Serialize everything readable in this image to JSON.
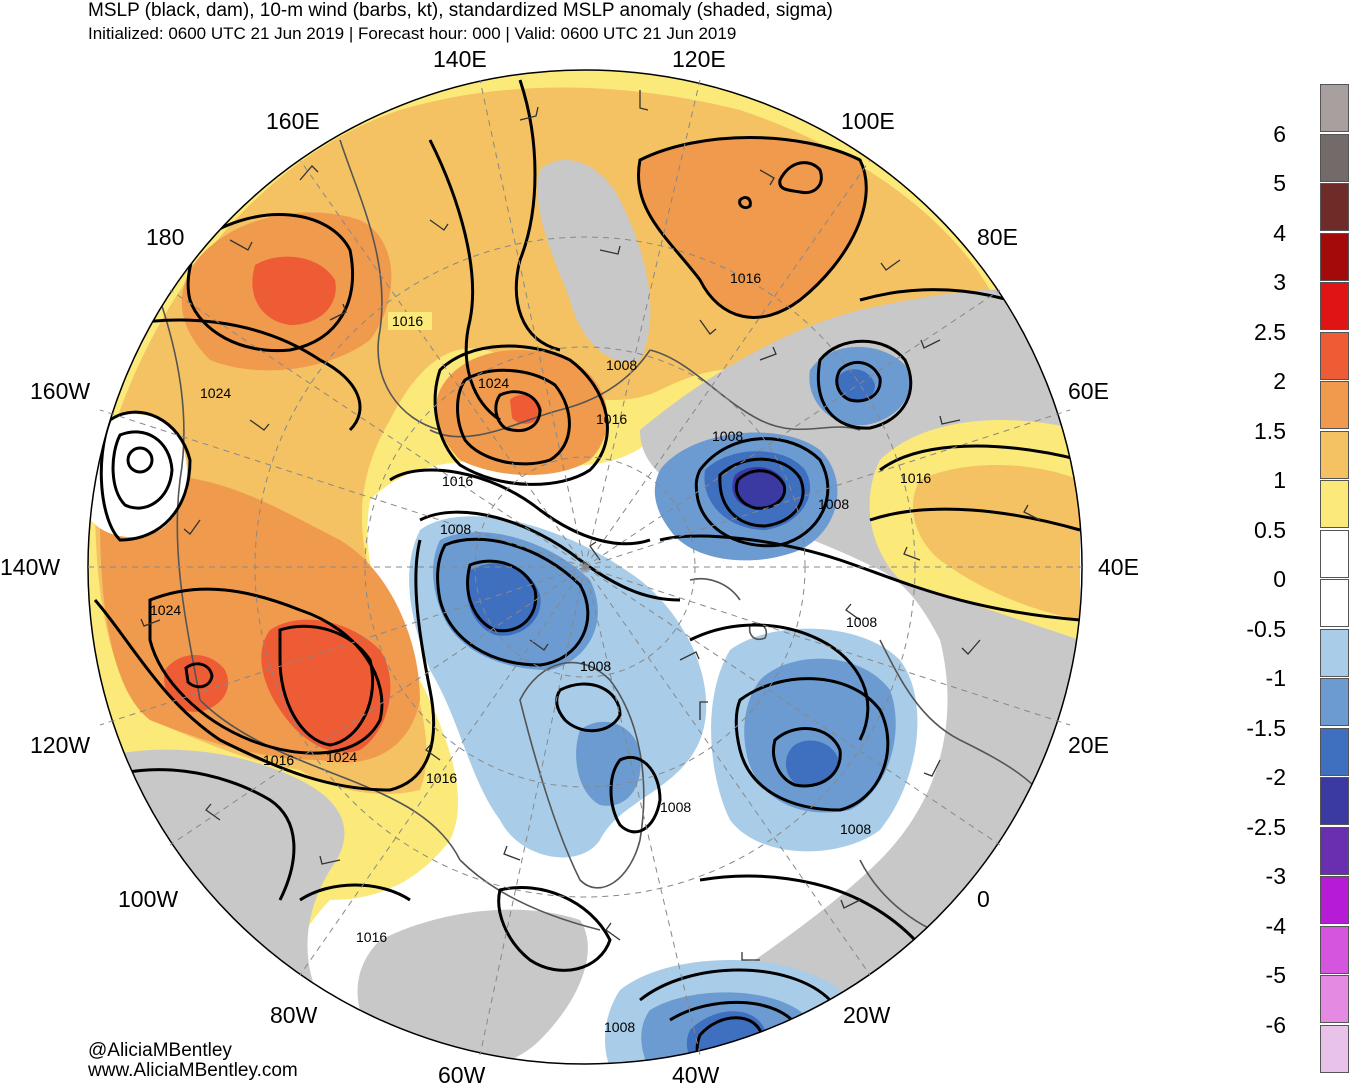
{
  "header": {
    "title": "MSLP (black, dam), 10-m wind (barbs, kt), standardized MSLP anomaly (shaded, sigma)",
    "subtitle": "Initialized: 0600 UTC 21 Jun 2019 | Forecast hour: 000 | Valid: 0600 UTC 21 Jun 2019"
  },
  "map": {
    "projection": "north-polar-stereographic",
    "longitude_labels": {
      "e140": "140E",
      "e120": "120E",
      "e160": "160E",
      "e100": "100E",
      "d180": "180",
      "e80": "80E",
      "w160": "160W",
      "e60": "60E",
      "w140": "140W",
      "e40": "40E",
      "w120": "120W",
      "e20": "20E",
      "w100": "100W",
      "d0": "0",
      "w80": "80W",
      "w20": "20W",
      "w60": "60W",
      "w40": "40W"
    },
    "isobar_labels": {
      "l1": "1016",
      "l2": "1008",
      "l3": "1016",
      "l4": "1024",
      "l5": "1016",
      "l6": "1024",
      "l7": "1008",
      "l8": "1016",
      "l9": "1016",
      "l10": "1008",
      "l11": "1008",
      "l12": "1024",
      "l13": "1008",
      "l14": "1008",
      "l15": "1016",
      "l16": "1024",
      "l17": "1016",
      "l18": "1008",
      "l19": "1008",
      "l20": "1016",
      "l21": "1008"
    },
    "colors": {
      "ocean_neutral": "#ffffff",
      "neg_0_5": "#a9cde8",
      "neg_1": "#6b9bd1",
      "neg_1_5": "#3f6fbf",
      "neg_2": "#3b3aa3",
      "pos_0_5": "#fbe97a",
      "pos_1": "#f4c262",
      "pos_1_5": "#f09a4e",
      "pos_2": "#ee5c35",
      "gray": "#c8c8c8",
      "coast": "#555555",
      "isobar": "#000000"
    }
  },
  "colorbar": {
    "labels": [
      "6",
      "5",
      "4",
      "3",
      "2.5",
      "2",
      "1.5",
      "1",
      "0.5",
      "0",
      "-0.5",
      "-1",
      "-1.5",
      "-2",
      "-2.5",
      "-3",
      "-4",
      "-5",
      "-6"
    ],
    "colors": [
      "#a8a09f",
      "#736b6a",
      "#6f2b27",
      "#a30a0a",
      "#e01414",
      "#ee5c35",
      "#f09a4e",
      "#f4c262",
      "#fbe97a",
      "#ffffff",
      "#ffffff",
      "#a9cde8",
      "#6b9bd1",
      "#3f6fbf",
      "#3b3aa3",
      "#6a2fb0",
      "#b61bd6",
      "#d655de",
      "#e58ae3",
      "#e8c2e8"
    ]
  },
  "credits": {
    "handle": "@AliciaMBentley",
    "website": "www.AliciaMBentley.com"
  }
}
